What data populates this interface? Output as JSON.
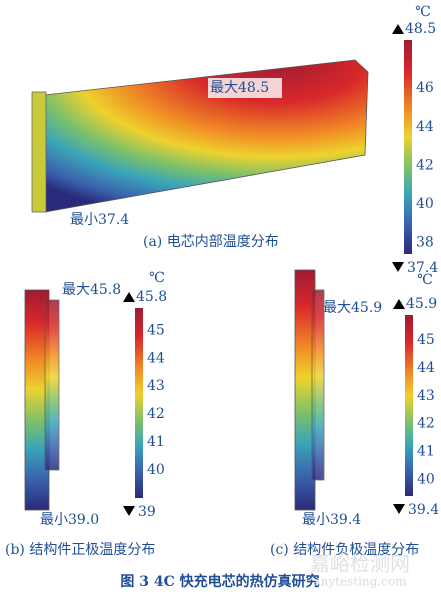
{
  "panels": [
    {
      "caption": "(a) 电芯内部温度分布",
      "max_label": "最大48.5",
      "min_label": "最小37.4",
      "colorbar": {
        "unit": "℃",
        "max": 48.5,
        "min": 37.4,
        "ticks": [
          46,
          44,
          42,
          40,
          38
        ],
        "max_text": "48.5",
        "min_text": "37.4"
      }
    },
    {
      "caption": "(b) 结构件正极温度分布",
      "max_label": "最大45.8",
      "min_label": "最小39.0",
      "colorbar": {
        "unit": "℃",
        "max": 45.8,
        "min": 39,
        "ticks": [
          45,
          44,
          43,
          42,
          41,
          40
        ],
        "max_text": "45.8",
        "min_text": "39"
      }
    },
    {
      "caption": "(c) 结构件负极温度分布",
      "max_label": "最大45.9",
      "min_label": "最小39.4",
      "colorbar": {
        "unit": "℃",
        "max": 45.9,
        "min": 39.4,
        "ticks": [
          45,
          44,
          43,
          42,
          41,
          40
        ],
        "max_text": "45.9",
        "min_text": "39.4"
      }
    }
  ],
  "figure_caption": "图 3 4C 快充电芯的热仿真研究",
  "watermark": {
    "name": "嘉峪检测网",
    "url": "anytesting.com"
  }
}
